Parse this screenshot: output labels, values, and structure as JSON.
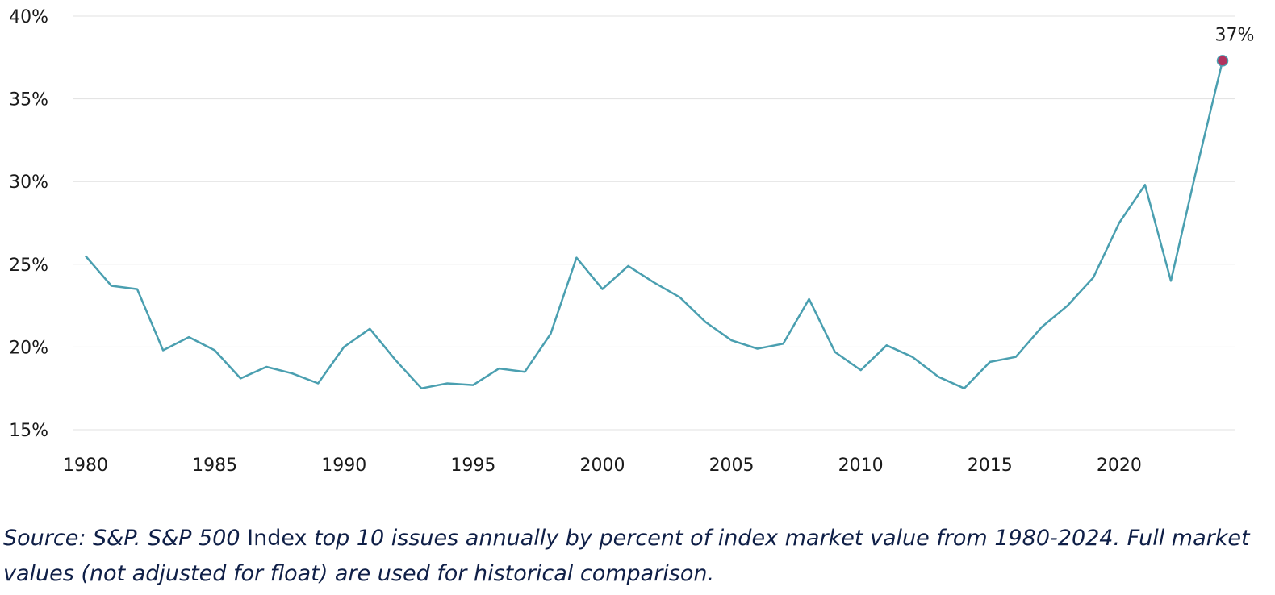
{
  "colors": {
    "line": "#4a9fb0",
    "highlight": "#b0335e",
    "text": "#1a1a1a",
    "caption": "#0f1f47",
    "grid": "#e1e1e1"
  },
  "caption": {
    "part1": "Source: S&P. S&P 500",
    "part2": " Index ",
    "part3": "top 10 issues annually by percent of index market value from 1980-2024. Full market values (not adjusted for float) are used for historical comparison."
  },
  "chart_data": {
    "type": "line",
    "title": "",
    "xlabel": "",
    "ylabel": "",
    "xlim": [
      1980,
      2024
    ],
    "ylim": [
      15,
      40
    ],
    "x_ticks": [
      1980,
      1985,
      1990,
      1995,
      2000,
      2005,
      2010,
      2015,
      2020
    ],
    "x_tick_labels": [
      "1980",
      "1985",
      "1990",
      "1995",
      "2000",
      "2005",
      "2010",
      "2015",
      "2020"
    ],
    "y_ticks": [
      15,
      20,
      25,
      30,
      35,
      40
    ],
    "y_tick_labels": [
      "15%",
      "20%",
      "25%",
      "30%",
      "35%",
      "40%"
    ],
    "grid": "horizontal",
    "legend": "none",
    "series": [
      {
        "x": [
          1980,
          1981,
          1982,
          1983,
          1984,
          1985,
          1986,
          1987,
          1988,
          1989,
          1990,
          1991,
          1992,
          1993,
          1994,
          1995,
          1996,
          1997,
          1998,
          1999,
          2000,
          2001,
          2002,
          2003,
          2004,
          2005,
          2006,
          2007,
          2008,
          2009,
          2010,
          2011,
          2012,
          2013,
          2014,
          2015,
          2016,
          2017,
          2018,
          2019,
          2020,
          2021,
          2022,
          2023,
          2024
        ],
        "values": [
          25.5,
          23.7,
          23.5,
          19.8,
          20.6,
          19.8,
          18.1,
          18.8,
          18.4,
          17.8,
          20.0,
          21.1,
          19.2,
          17.5,
          17.8,
          17.7,
          18.7,
          18.5,
          20.8,
          25.4,
          23.5,
          24.9,
          23.9,
          23.0,
          21.5,
          20.4,
          19.9,
          20.2,
          22.9,
          19.7,
          18.6,
          20.1,
          19.4,
          18.2,
          17.5,
          19.1,
          19.4,
          21.2,
          22.5,
          24.2,
          27.5,
          29.8,
          24.0,
          30.8,
          37.3
        ]
      }
    ],
    "annotations": [
      {
        "x": 2024,
        "y": 37.3,
        "label": "37%"
      }
    ]
  }
}
